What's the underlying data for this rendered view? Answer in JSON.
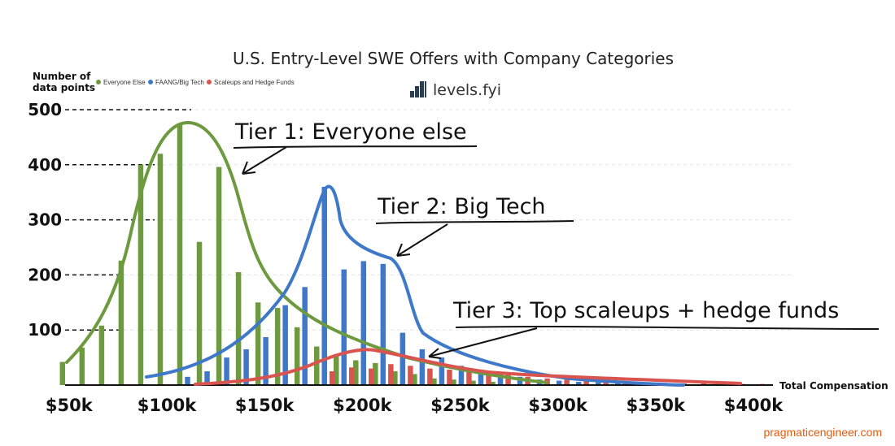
{
  "chart_data": {
    "type": "bar",
    "title": "U.S. Entry-Level SWE Offers with Company Categories",
    "ylabel_line1": "Number of",
    "ylabel_line2": "data points",
    "xlabel": "Total Compensation",
    "brand": "levels.fyi",
    "legend_position": "top-left",
    "y_ticks": [
      100,
      200,
      300,
      400,
      500
    ],
    "x_tick_labels": [
      "$50k",
      "$100k",
      "$150k",
      "$200k",
      "$250k",
      "$300k",
      "$350k",
      "$400k"
    ],
    "x_ticks": [
      50000,
      100000,
      150000,
      200000,
      250000,
      300000,
      350000,
      400000
    ],
    "xlim": [
      48000,
      410000
    ],
    "ylim": [
      0,
      500
    ],
    "grid": "horizontal dashed",
    "series": [
      {
        "name": "Everyone Else",
        "color": "#6e9a3f",
        "x": [
          50000,
          60000,
          70000,
          80000,
          90000,
          100000,
          110000,
          120000,
          130000,
          140000,
          150000,
          160000,
          170000,
          180000,
          190000,
          200000,
          210000,
          220000,
          230000,
          240000,
          250000,
          260000,
          270000
        ],
        "values": [
          42,
          68,
          108,
          226,
          400,
          420,
          475,
          260,
          396,
          205,
          150,
          140,
          105,
          70,
          55,
          45,
          40,
          25,
          20,
          12,
          10,
          8,
          6
        ]
      },
      {
        "name": "FAANG/Big Tech",
        "color": "#3e79c9",
        "x": [
          110000,
          120000,
          130000,
          140000,
          150000,
          160000,
          170000,
          180000,
          190000,
          200000,
          210000,
          220000,
          230000,
          240000,
          250000,
          260000,
          270000,
          280000,
          290000,
          300000,
          310000,
          320000,
          330000,
          340000,
          350000
        ],
        "values": [
          15,
          25,
          50,
          65,
          87,
          145,
          178,
          360,
          210,
          225,
          220,
          95,
          65,
          50,
          35,
          25,
          20,
          15,
          10,
          8,
          6,
          5,
          4,
          3,
          2
        ]
      },
      {
        "name": "Scaleups and Hedge Funds",
        "color": "#d9534f",
        "x": [
          180000,
          190000,
          200000,
          210000,
          220000,
          230000,
          240000,
          250000,
          260000,
          270000,
          280000,
          290000,
          300000,
          310000,
          320000,
          330000,
          340000,
          350000,
          360000,
          370000,
          380000,
          390000,
          400000
        ],
        "values": [
          25,
          32,
          30,
          38,
          35,
          30,
          28,
          25,
          22,
          20,
          15,
          12,
          10,
          8,
          6,
          5,
          4,
          4,
          3,
          3,
          2,
          2,
          2
        ]
      }
    ],
    "annotations": [
      {
        "text": "Tier 1: Everyone else"
      },
      {
        "text": "Tier 2: Big Tech"
      },
      {
        "text": "Tier 3: Top scaleups + hedge funds"
      }
    ],
    "credit": "pragmaticengineer.com",
    "credit_color": "#e8590c"
  }
}
